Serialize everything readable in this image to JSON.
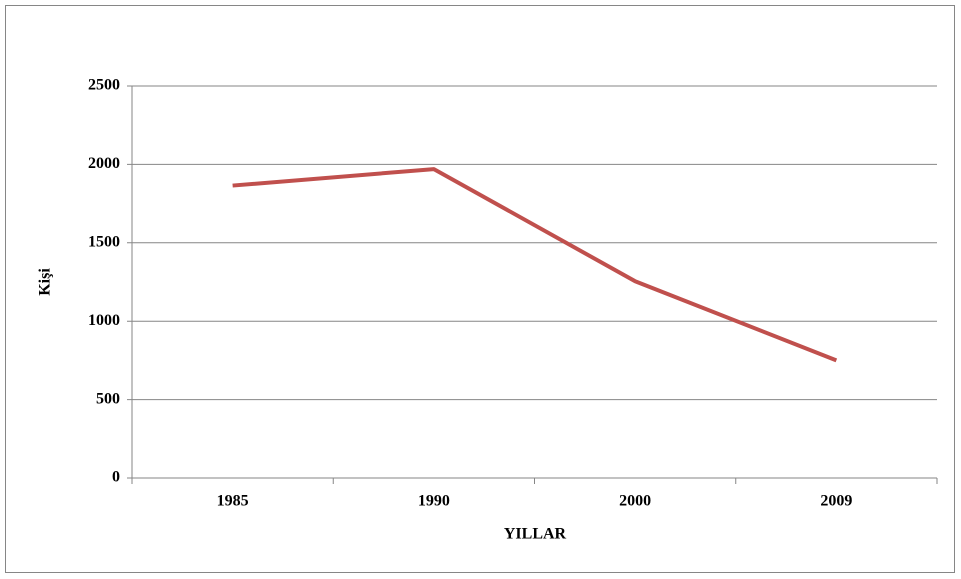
{
  "chart_data": {
    "type": "line",
    "x_label": "YILLAR",
    "y_label": "Kişi",
    "categories": [
      "1985",
      "1990",
      "2000",
      "2009"
    ],
    "series": [
      {
        "name": "Kişi",
        "color": "#c0504d",
        "values": [
          1865,
          1970,
          1255,
          750
        ]
      }
    ],
    "ylim": [
      0,
      2500
    ],
    "yticks": [
      0,
      500,
      1000,
      1500,
      2000,
      2500
    ],
    "grid": true
  }
}
